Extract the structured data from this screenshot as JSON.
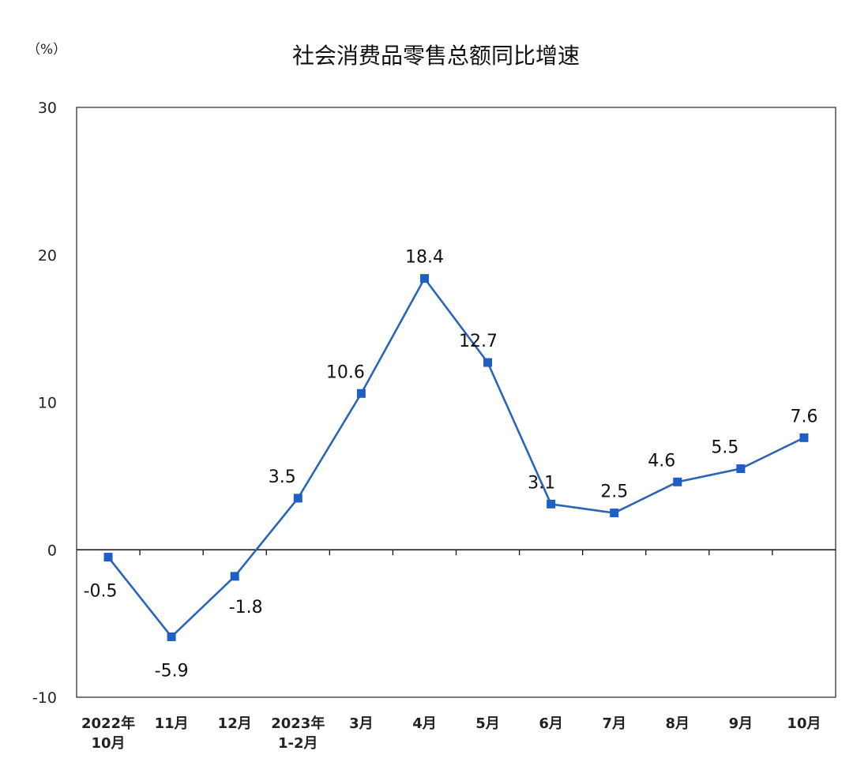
{
  "chart_data": {
    "type": "line",
    "title": "社会消费品零售总额同比增速",
    "unit_label": "（%）",
    "ylim": [
      -10,
      30
    ],
    "yticks": [
      "30",
      "20",
      "10",
      "0",
      "-10"
    ],
    "categories": [
      [
        "2022年",
        "10月"
      ],
      [
        "11月"
      ],
      [
        "12月"
      ],
      [
        "2023年",
        "1-2月"
      ],
      [
        "3月"
      ],
      [
        "4月"
      ],
      [
        "5月"
      ],
      [
        "6月"
      ],
      [
        "7月"
      ],
      [
        "8月"
      ],
      [
        "9月"
      ],
      [
        "10月"
      ]
    ],
    "series": [
      {
        "values": [
          -0.5,
          -5.9,
          -1.8,
          3.5,
          10.6,
          18.4,
          12.7,
          3.1,
          2.5,
          4.6,
          5.5,
          7.6
        ],
        "labels": [
          "-0.5",
          "-5.9",
          "-1.8",
          "3.5",
          "10.6",
          "18.4",
          "12.7",
          "3.1",
          "2.5",
          "4.6",
          "5.5",
          "7.6"
        ]
      }
    ],
    "grid": false,
    "legend": "none",
    "colors": {
      "line": "#2a65b8",
      "marker": "#1f5fc4"
    }
  }
}
